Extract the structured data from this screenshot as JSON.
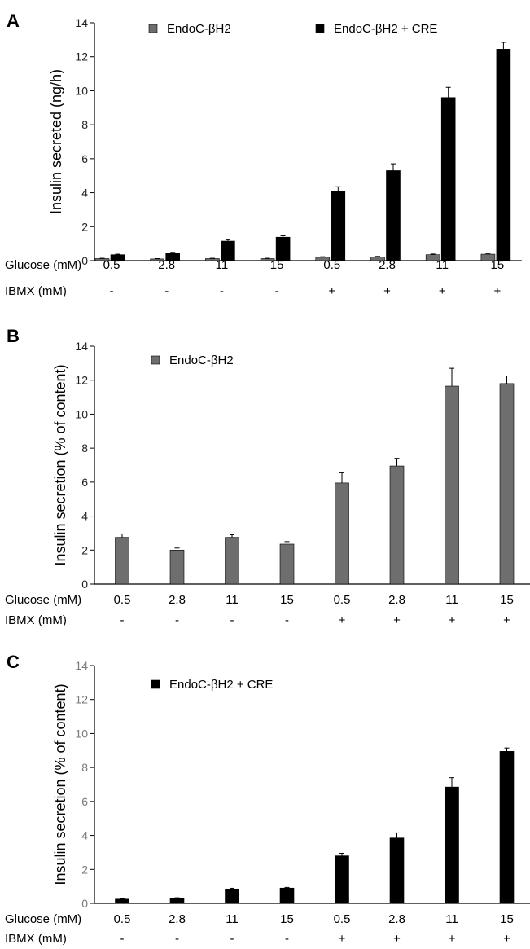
{
  "chart_data": [
    {
      "type": "bar",
      "panel": "A",
      "ylabel": "Insulin secreted (ng/h)",
      "ylim": [
        0,
        14
      ],
      "yticks": [
        "0",
        "2",
        "4",
        "6",
        "8",
        "10",
        "12",
        "14"
      ],
      "grid": false,
      "legend": "top",
      "row_labels": [
        "Glucose (mM)",
        "IBMX (mM)"
      ],
      "glucose": [
        "0.5",
        "2.8",
        "11",
        "15",
        "0.5",
        "2.8",
        "11",
        "15"
      ],
      "ibmx": [
        "-",
        "-",
        "-",
        "-",
        "+",
        "+",
        "+",
        "+"
      ],
      "series": [
        {
          "name": "EndoC-βH2",
          "color": "#6e6e6e",
          "values": [
            0.12,
            0.1,
            0.12,
            0.12,
            0.2,
            0.22,
            0.35,
            0.38
          ],
          "errors": [
            0.02,
            0.02,
            0.02,
            0.02,
            0.03,
            0.03,
            0.04,
            0.04
          ]
        },
        {
          "name": "EndoC-βH2 + CRE",
          "color": "#000000",
          "values": [
            0.35,
            0.45,
            1.15,
            1.38,
            4.1,
            5.3,
            9.6,
            12.45
          ],
          "errors": [
            0.03,
            0.04,
            0.08,
            0.08,
            0.25,
            0.4,
            0.6,
            0.4
          ]
        }
      ]
    },
    {
      "type": "bar",
      "panel": "B",
      "ylabel": "Insulin secretion (% of content)",
      "ylim": [
        0,
        14
      ],
      "yticks": [
        "0",
        "2",
        "4",
        "6",
        "8",
        "10",
        "12",
        "14"
      ],
      "grid": false,
      "legend": "top-left",
      "row_labels": [
        "Glucose (mM)",
        "IBMX (mM)"
      ],
      "glucose": [
        "0.5",
        "2.8",
        "11",
        "15",
        "0.5",
        "2.8",
        "11",
        "15"
      ],
      "ibmx": [
        "-",
        "-",
        "-",
        "-",
        "+",
        "+",
        "+",
        "+"
      ],
      "series": [
        {
          "name": "EndoC-βH2",
          "color": "#6e6e6e",
          "values": [
            2.75,
            2.0,
            2.75,
            2.35,
            5.95,
            6.95,
            11.65,
            11.8
          ],
          "errors": [
            0.2,
            0.12,
            0.15,
            0.15,
            0.6,
            0.45,
            1.05,
            0.45
          ]
        }
      ]
    },
    {
      "type": "bar",
      "panel": "C",
      "ylabel": "Insulin secretion (% of content)",
      "ylim": [
        0,
        14
      ],
      "yticks": [
        "0",
        "2",
        "4",
        "6",
        "8",
        "10",
        "12",
        "14"
      ],
      "grid": false,
      "legend": "top-left",
      "row_labels": [
        "Glucose (mM)",
        "IBMX (mM)"
      ],
      "glucose": [
        "0.5",
        "2.8",
        "11",
        "15",
        "0.5",
        "2.8",
        "11",
        "15"
      ],
      "ibmx": [
        "-",
        "-",
        "-",
        "-",
        "+",
        "+",
        "+",
        "+"
      ],
      "series": [
        {
          "name": "EndoC-βH2 + CRE",
          "color": "#000000",
          "values": [
            0.25,
            0.3,
            0.85,
            0.9,
            2.8,
            3.85,
            6.85,
            8.95
          ],
          "errors": [
            0.03,
            0.03,
            0.04,
            0.04,
            0.15,
            0.3,
            0.55,
            0.2
          ]
        }
      ]
    }
  ]
}
